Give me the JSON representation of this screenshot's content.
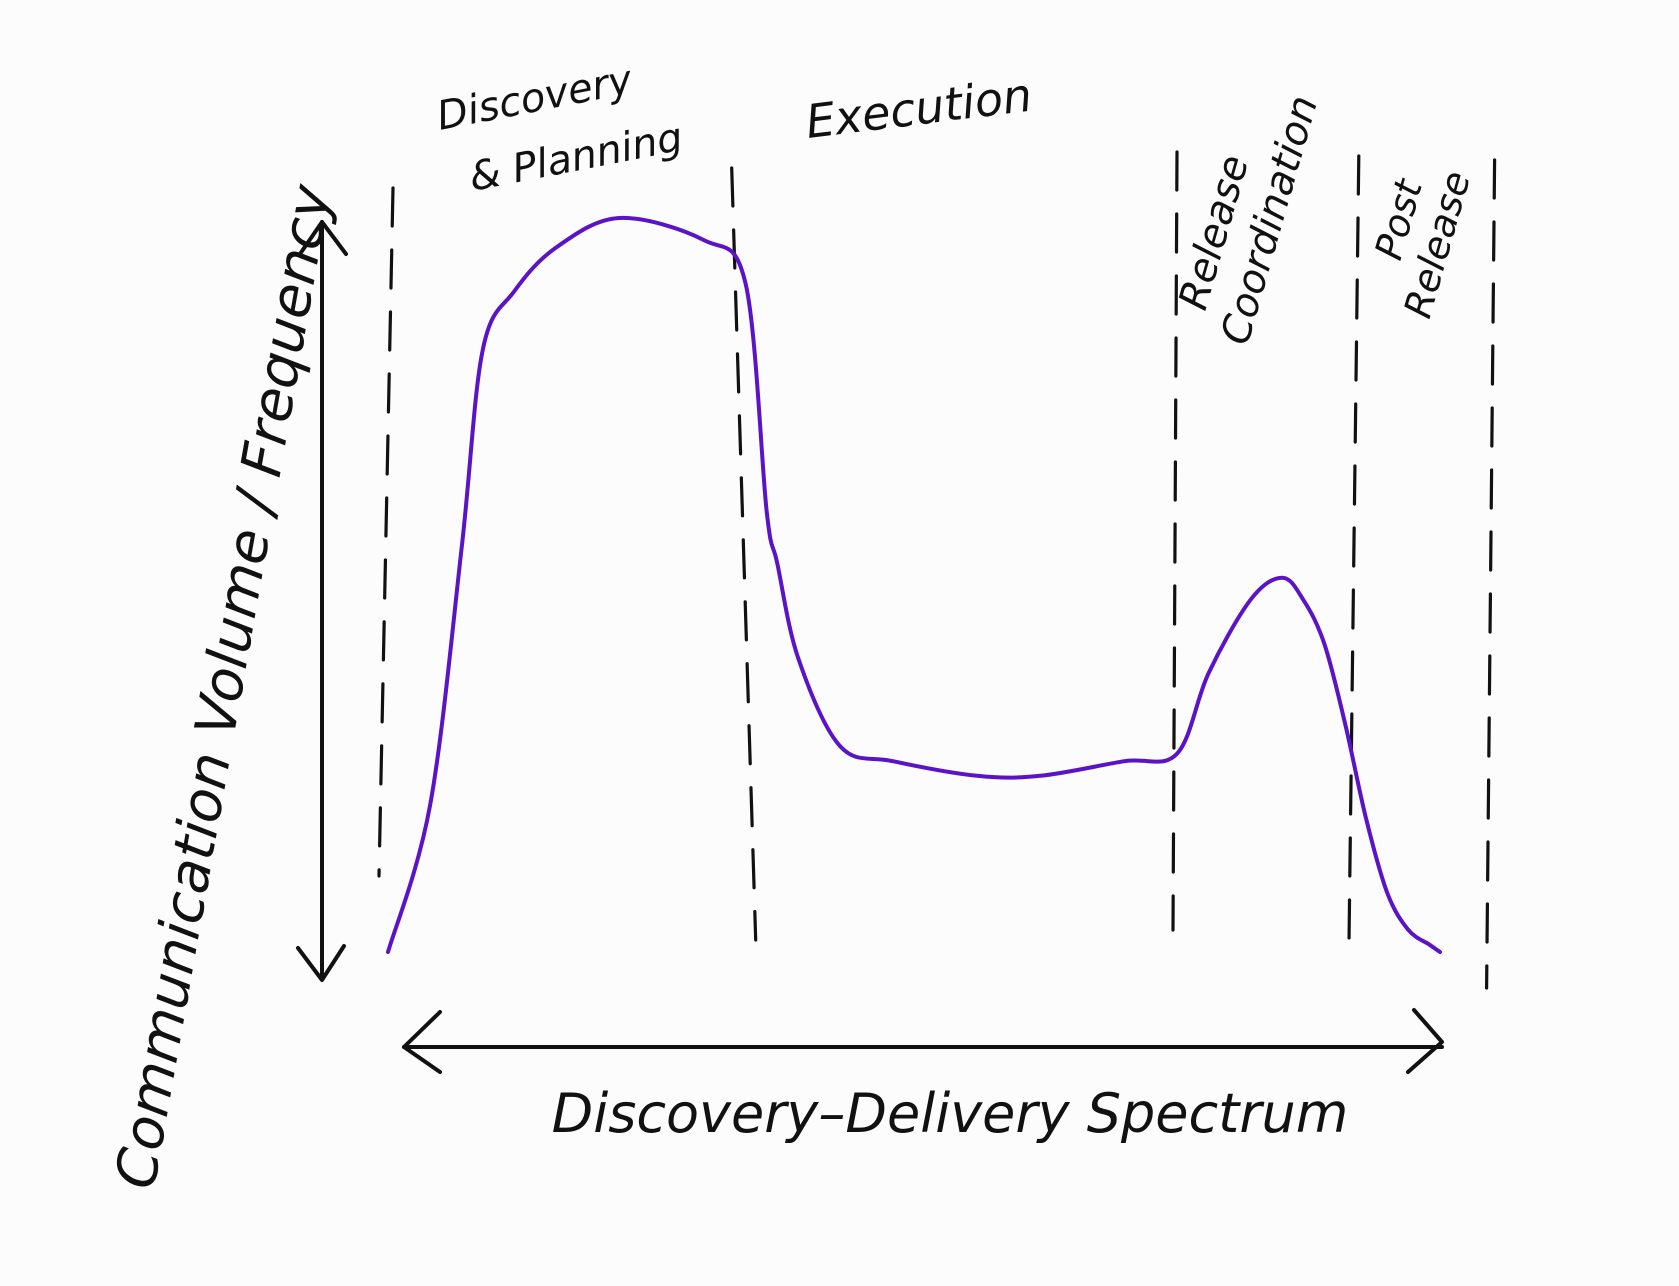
{
  "chart_data": {
    "type": "line",
    "title": "",
    "xlabel": "Discovery–Delivery Spectrum",
    "ylabel": "Communication Volume / Frequency",
    "xlim": [
      0,
      100
    ],
    "ylim": [
      0,
      100
    ],
    "grid": false,
    "axis_style": "double-headed arrows",
    "ticks": "none",
    "series": [
      {
        "color": "#5b13c8",
        "x": [
          0,
          4,
          7,
          9,
          12,
          16,
          22,
          30,
          34,
          36,
          37,
          39,
          43,
          48,
          56,
          62,
          70,
          75,
          78,
          82,
          85,
          87,
          89,
          91,
          93,
          95,
          97,
          99,
          100
        ],
        "y": [
          0,
          20,
          55,
          82,
          90,
          96,
          100,
          97,
          91,
          60,
          53,
          40,
          28,
          26,
          24,
          24,
          26,
          27,
          38,
          48,
          51,
          48,
          42,
          31,
          18,
          8,
          3,
          1,
          0
        ]
      }
    ],
    "phases": [
      {
        "label_lines": [
          "Discovery",
          "& Planning"
        ],
        "x_start": 0,
        "x_end": 34
      },
      {
        "label_lines": [
          "Execution"
        ],
        "x_start": 34,
        "x_end": 75
      },
      {
        "label_lines": [
          "Release",
          "Coordination"
        ],
        "x_start": 75,
        "x_end": 92
      },
      {
        "label_lines": [
          "Post",
          "Release"
        ],
        "x_start": 92,
        "x_end": 105
      }
    ],
    "phase_boundaries_x": [
      0,
      34,
      75,
      92,
      105
    ]
  },
  "colors": {
    "ink": "#111111",
    "curve": "#5b13c8",
    "background": "#fcfcfc"
  }
}
